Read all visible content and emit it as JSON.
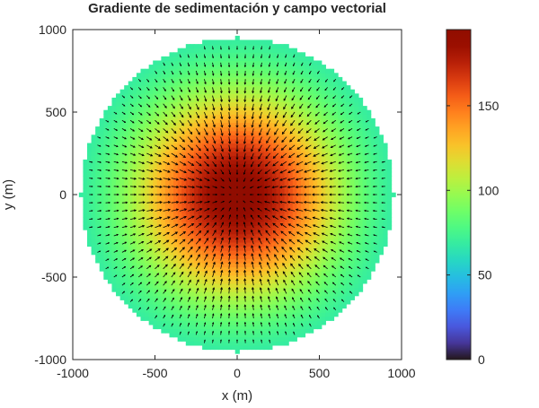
{
  "chart_data": {
    "type": "heatmap",
    "overlay": "quiver",
    "title": "Gradiente de sedimentación y campo vectorial",
    "xlabel": "x (m)",
    "ylabel": "y (m)",
    "xlim": [
      -1000,
      1000
    ],
    "ylim": [
      -1000,
      1000
    ],
    "xticks": [
      "-1000",
      "-500",
      "0",
      "500",
      "1000"
    ],
    "yticks": [
      "-1000",
      "-500",
      "0",
      "500",
      "1000"
    ],
    "domain": {
      "shape": "disk",
      "center": [
        0,
        0
      ],
      "radius": 950
    },
    "field": {
      "peak_value": 195,
      "background_value": 58,
      "center": [
        0,
        0
      ],
      "decay_length_m": 420
    },
    "grid_spacing_m": 25,
    "vectors": {
      "color": "#000000",
      "direction": "toward center"
    },
    "colorbar": {
      "colormap": "turbo",
      "clim": [
        0,
        195
      ],
      "ticks": [
        "0",
        "50",
        "100",
        "150"
      ],
      "location": "right"
    },
    "grid": false
  }
}
